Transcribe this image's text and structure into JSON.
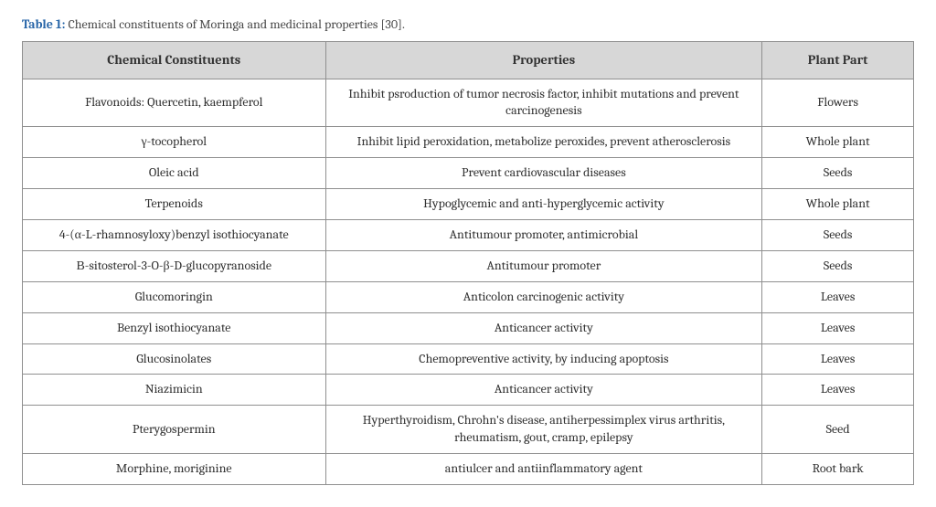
{
  "caption": {
    "label": "Table 1:",
    "text": " Chemical constituents of Moringa and medicinal properties [30]."
  },
  "table": {
    "columns": [
      "Chemical Constituents",
      "Properties",
      "Plant Part"
    ],
    "rows": [
      [
        "Flavonoids: Quercetin, kaempferol",
        "Inhibit psroduction of tumor necrosis factor, inhibit mutations and prevent carcinogenesis",
        "Flowers"
      ],
      [
        "γ-tocopherol",
        "Inhibit lipid peroxidation, metabolize peroxides, prevent atherosclerosis",
        "Whole plant"
      ],
      [
        "Oleic acid",
        "Prevent cardiovascular diseases",
        "Seeds"
      ],
      [
        "Terpenoids",
        "Hypoglycemic and anti-hyperglycemic activity",
        "Whole plant"
      ],
      [
        "4-(α-L-rhamnosyloxy)benzyl isothiocyanate",
        "Antitumour promoter, antimicrobial",
        "Seeds"
      ],
      [
        "Β-sitosterol-3-O-β-D-glucopyranoside",
        "Antitumour promoter",
        "Seeds"
      ],
      [
        "Glucomoringin",
        "Anticolon carcinogenic activity",
        "Leaves"
      ],
      [
        "Benzyl isothiocyanate",
        "Anticancer activity",
        "Leaves"
      ],
      [
        "Glucosinolates",
        "Chemopreventive activity, by inducing apoptosis",
        "Leaves"
      ],
      [
        "Niazimicin",
        "Anticancer activity",
        "Leaves"
      ],
      [
        "Pterygospermin",
        "Hyperthyroidism, Chrohn's disease, antiherpessimplex virus arthritis, rheumatism, gout, cramp, epilepsy",
        "Seed"
      ],
      [
        "Morphine, moriginine",
        "antiulcer and antiinflammatory agent",
        "Root bark"
      ]
    ]
  },
  "style": {
    "header_bg": "#d7d7d7",
    "border_color": "#8f8f8f",
    "label_color": "#2866a8",
    "text_color": "#333333",
    "col_widths_pct": [
      34,
      49,
      17
    ],
    "font_family": "Cambria, Georgia, serif"
  }
}
